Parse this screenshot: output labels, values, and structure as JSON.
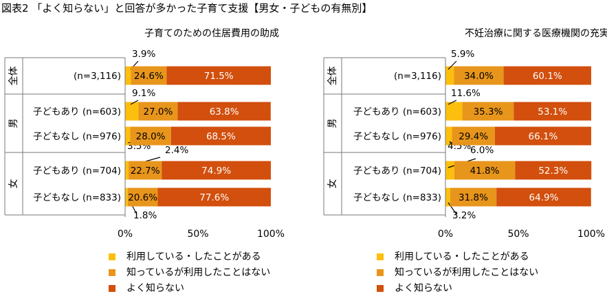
{
  "title": "図表2 「よく知らない」と回答が多かった子育て支援【男女・子どもの有無別】",
  "colors": {
    "used": "#FCBF0E",
    "known": "#E8951C",
    "unknown": "#D24F0D"
  },
  "legend": [
    {
      "label": "利用している・したことがある",
      "color_key": "used"
    },
    {
      "label": "知っているが利用したことはない",
      "color_key": "known"
    },
    {
      "label": "よく知らない",
      "color_key": "unknown"
    }
  ],
  "chart_data": [
    {
      "type": "bar",
      "stacked": "horizontal-100",
      "title": "子育てのための住居費用の助成",
      "xlim": [
        0,
        100
      ],
      "x_ticks": [
        "0%",
        "50%",
        "100%"
      ],
      "groups": [
        {
          "label": "全体",
          "rows": [
            0
          ]
        },
        {
          "label": "男",
          "rows": [
            1,
            2
          ]
        },
        {
          "label": "女",
          "rows": [
            3,
            4
          ]
        }
      ],
      "categories": [
        "(n=3,116)",
        "子どもあり (n=603)",
        "子どもなし (n=976)",
        "子どもあり (n=704)",
        "子どもなし (n=833)"
      ],
      "series": [
        {
          "name": "利用している・したことがある",
          "values": [
            3.9,
            9.1,
            3.5,
            2.4,
            1.8
          ],
          "labels": [
            "3.9%",
            "9.1%",
            "3.5%",
            "2.4%",
            "1.8%"
          ]
        },
        {
          "name": "知っているが利用したことはない",
          "values": [
            24.6,
            27.0,
            28.0,
            22.7,
            20.6
          ],
          "labels": [
            "24.6%",
            "27.0%",
            "28.0%",
            "22.7%",
            "20.6%"
          ]
        },
        {
          "name": "よく知らない",
          "values": [
            71.5,
            63.8,
            68.5,
            74.9,
            77.6
          ],
          "labels": [
            "71.5%",
            "63.8%",
            "68.5%",
            "74.9%",
            "77.6%"
          ]
        }
      ]
    },
    {
      "type": "bar",
      "stacked": "horizontal-100",
      "title": "不妊治療に関する医療機関の充実や補助金の整備",
      "xlim": [
        0,
        100
      ],
      "x_ticks": [
        "0%",
        "50%",
        "100%"
      ],
      "groups": [
        {
          "label": "全体",
          "rows": [
            0
          ]
        },
        {
          "label": "男",
          "rows": [
            1,
            2
          ]
        },
        {
          "label": "女",
          "rows": [
            3,
            4
          ]
        }
      ],
      "categories": [
        "(n=3,116)",
        "子どもあり (n=603)",
        "子どもなし (n=976)",
        "子どもあり (n=704)",
        "子どもなし (n=833)"
      ],
      "series": [
        {
          "name": "利用している・したことがある",
          "values": [
            5.9,
            11.6,
            4.5,
            6.0,
            3.2
          ],
          "labels": [
            "5.9%",
            "11.6%",
            "4.5%",
            "6.0%",
            "3.2%"
          ]
        },
        {
          "name": "知っているが利用したことはない",
          "values": [
            34.0,
            35.3,
            29.4,
            41.8,
            31.8
          ],
          "labels": [
            "34.0%",
            "35.3%",
            "29.4%",
            "41.8%",
            "31.8%"
          ]
        },
        {
          "name": "よく知らない",
          "values": [
            60.1,
            53.1,
            66.1,
            52.3,
            64.9
          ],
          "labels": [
            "60.1%",
            "53.1%",
            "66.1%",
            "52.3%",
            "64.9%"
          ]
        }
      ]
    }
  ]
}
